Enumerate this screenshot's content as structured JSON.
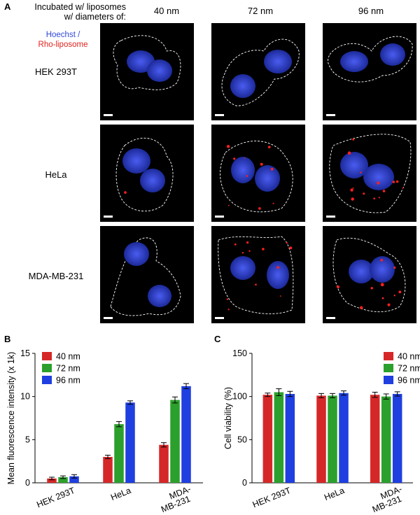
{
  "panel_a": {
    "letter": "A",
    "header_line1": "Incubated w/ liposomes",
    "header_line2": "w/ diameters of:",
    "stain_blue": "Hoechst",
    "stain_sep": " /",
    "stain_red": "Rho-liposome",
    "columns": [
      "40 nm",
      "72 nm",
      "96 nm"
    ],
    "rows": [
      "HEK 293T",
      "HeLa",
      "MDA-MB-231"
    ]
  },
  "colors": {
    "s40": "#d62728",
    "s72": "#2ca02c",
    "s96": "#1f3fe0",
    "nucleus": "#3040d0",
    "dots": "#ff2020"
  },
  "chart_data": [
    {
      "panel": "B",
      "type": "bar",
      "ylabel": "Mean fluorescence intensity (x 1k)",
      "ylim": [
        0,
        15
      ],
      "yticks": [
        0,
        5,
        10,
        15
      ],
      "categories": [
        "HEK 293T",
        "HeLa",
        "MDA-\nMB-231"
      ],
      "series": [
        {
          "name": "40 nm",
          "values": [
            0.5,
            3.0,
            4.4
          ],
          "errors": [
            0.15,
            0.2,
            0.25
          ]
        },
        {
          "name": "72 nm",
          "values": [
            0.65,
            6.8,
            9.6
          ],
          "errors": [
            0.15,
            0.3,
            0.35
          ]
        },
        {
          "name": "96 nm",
          "values": [
            0.75,
            9.3,
            11.2
          ],
          "errors": [
            0.2,
            0.2,
            0.3
          ]
        }
      ],
      "legend": "top-left"
    },
    {
      "panel": "C",
      "type": "bar",
      "ylabel": "Cell viability (%)",
      "ylim": [
        0,
        150
      ],
      "yticks": [
        0,
        50,
        100,
        150
      ],
      "categories": [
        "HEK 293T",
        "HeLa",
        "MDA-\nMB-231"
      ],
      "series": [
        {
          "name": "40 nm",
          "values": [
            102,
            101,
            102
          ],
          "errors": [
            2,
            2.5,
            3
          ]
        },
        {
          "name": "72 nm",
          "values": [
            105,
            101,
            100
          ],
          "errors": [
            4,
            2.5,
            3
          ]
        },
        {
          "name": "96 nm",
          "values": [
            103,
            104,
            103
          ],
          "errors": [
            3,
            2.5,
            2.5
          ]
        }
      ],
      "legend": "top-right"
    }
  ]
}
